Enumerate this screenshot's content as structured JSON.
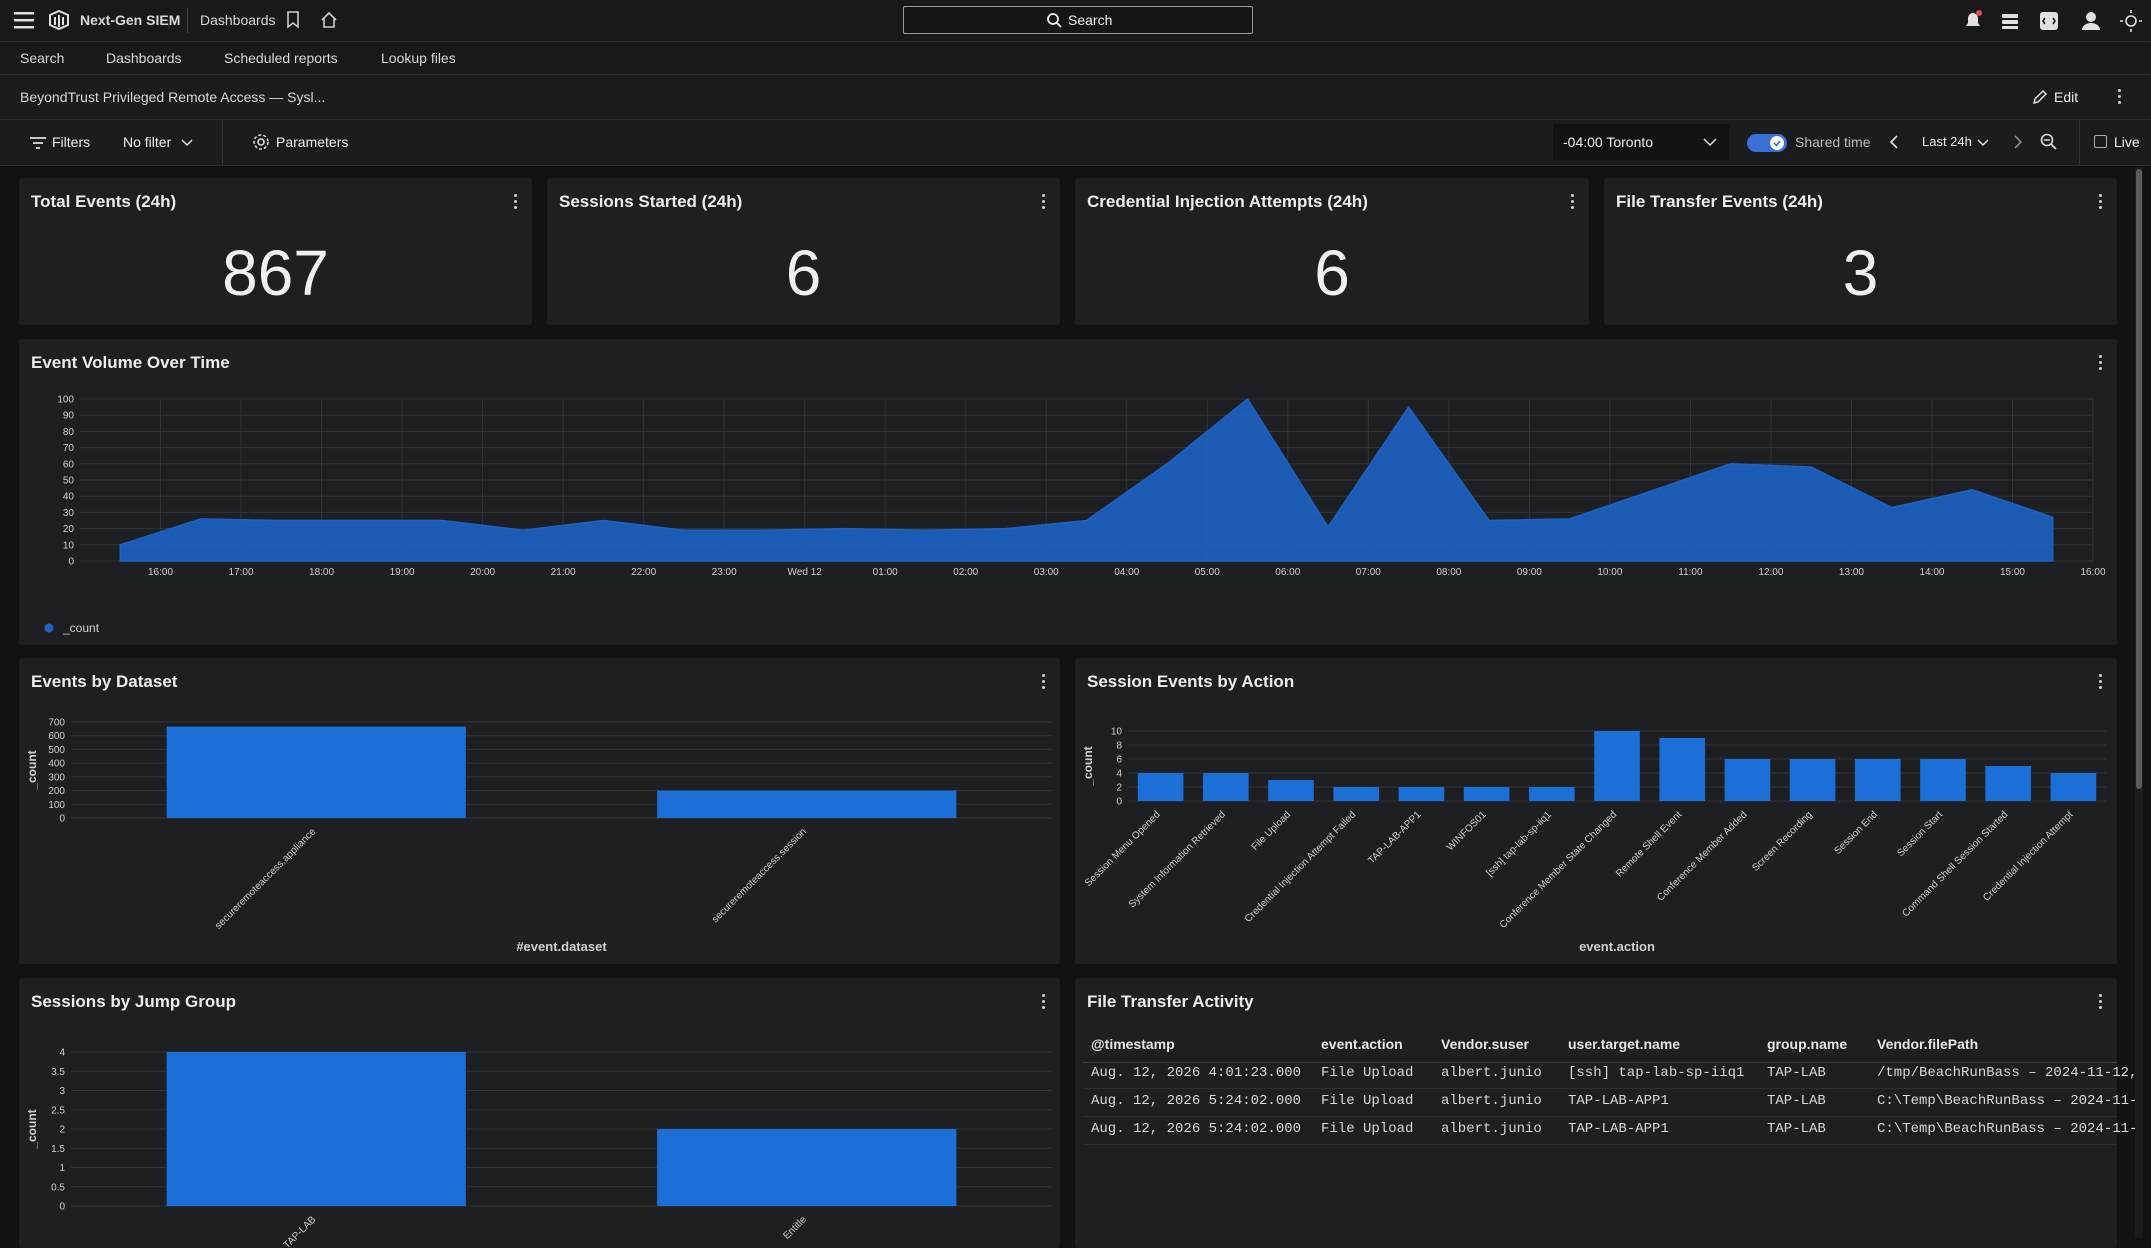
{
  "topbar": {
    "brand": "Next-Gen SIEM",
    "section": "Dashboards",
    "search": "Search"
  },
  "nav": {
    "items": [
      "Search",
      "Dashboards",
      "Scheduled reports",
      "Lookup files"
    ]
  },
  "dashboard": {
    "title": "BeyondTrust Privileged Remote Access — Sysl...",
    "edit": "Edit"
  },
  "toolbar": {
    "filters": "Filters",
    "filter_value": "No filter",
    "parameters": "Parameters",
    "timezone": "-04:00 Toronto",
    "shared_time": "Shared time",
    "range": "Last 24h",
    "live": "Live"
  },
  "stats": [
    {
      "title": "Total Events (24h)",
      "value": 867
    },
    {
      "title": "Sessions Started (24h)",
      "value": 6
    },
    {
      "title": "Credential Injection Attempts (24h)",
      "value": 6
    },
    {
      "title": "File Transfer Events (24h)",
      "value": 3
    }
  ],
  "chart_data": [
    {
      "type": "area",
      "title": "Event Volume Over Time",
      "x": [
        15.5,
        16.5,
        17.5,
        18.5,
        19.5,
        20.5,
        21.5,
        22.5,
        23.5,
        24.5,
        25.5,
        26.5,
        27.5,
        28.5,
        29.5,
        30.5,
        31.5,
        32.5,
        33.5,
        34.5,
        35.5,
        36.5,
        37.5,
        38.5,
        39.5
      ],
      "series": [
        {
          "name": "_count",
          "color": "#1c62c4",
          "values": [
            10,
            26,
            25,
            25,
            25,
            19,
            25,
            19,
            19,
            20,
            19,
            20,
            25,
            60,
            100,
            21,
            95,
            25,
            26,
            43,
            60,
            58,
            33,
            44,
            27
          ]
        }
      ],
      "xlim": [
        15,
        40
      ],
      "xticks": [
        {
          "value": 16,
          "label": "16:00"
        },
        {
          "value": 17,
          "label": "17:00"
        },
        {
          "value": 18,
          "label": "18:00"
        },
        {
          "value": 19,
          "label": "19:00"
        },
        {
          "value": 20,
          "label": "20:00"
        },
        {
          "value": 21,
          "label": "21:00"
        },
        {
          "value": 22,
          "label": "22:00"
        },
        {
          "value": 23,
          "label": "23:00"
        },
        {
          "value": 24,
          "label": "Wed 12"
        },
        {
          "value": 25,
          "label": "01:00"
        },
        {
          "value": 26,
          "label": "02:00"
        },
        {
          "value": 27,
          "label": "03:00"
        },
        {
          "value": 28,
          "label": "04:00"
        },
        {
          "value": 29,
          "label": "05:00"
        },
        {
          "value": 30,
          "label": "06:00"
        },
        {
          "value": 31,
          "label": "07:00"
        },
        {
          "value": 32,
          "label": "08:00"
        },
        {
          "value": 33,
          "label": "09:00"
        },
        {
          "value": 34,
          "label": "10:00"
        },
        {
          "value": 35,
          "label": "11:00"
        },
        {
          "value": 36,
          "label": "12:00"
        },
        {
          "value": 37,
          "label": "13:00"
        },
        {
          "value": 38,
          "label": "14:00"
        },
        {
          "value": 39,
          "label": "15:00"
        },
        {
          "value": 40,
          "label": "16:00"
        }
      ],
      "ylim": [
        0,
        100
      ],
      "yticks": [
        0,
        10,
        20,
        30,
        40,
        50,
        60,
        70,
        80,
        90,
        100
      ],
      "grid": true
    },
    {
      "type": "bar",
      "title": "Events by Dataset",
      "x_label": "#event.dataset",
      "y_label": "_count",
      "categories": [
        "secureremoteaccess.appliance",
        "secureremoteaccess.session"
      ],
      "values": [
        667,
        200
      ],
      "color": "#1c6fd6",
      "ylim": [
        0,
        700
      ],
      "yticks": [
        0,
        100,
        200,
        300,
        400,
        500,
        600,
        700
      ],
      "grid": true
    },
    {
      "type": "bar",
      "title": "Session Events by Action",
      "x_label": "event.action",
      "y_label": "_count",
      "categories": [
        "Session Menu Opened",
        "System Information Retrieved",
        "File Upload",
        "Credential Injection Attempt Failed",
        "TAP-LAB-APP1",
        "WINFOS01",
        "[ssh] tap-lab-sp-iiq1",
        "Conference Member State Changed",
        "Remote Shell Event",
        "Conference Member Added",
        "Screen Recording",
        "Session End",
        "Session Start",
        "Command Shell Session Started",
        "Credential Injection Attempt"
      ],
      "values": [
        4,
        4,
        3,
        2,
        2,
        2,
        2,
        10,
        9,
        6,
        6,
        6,
        6,
        5,
        4
      ],
      "color": "#1c6fd6",
      "ylim": [
        0,
        10
      ],
      "yticks": [
        0,
        2,
        4,
        6,
        8,
        10
      ],
      "grid": true
    },
    {
      "type": "bar",
      "title": "Sessions by Jump Group",
      "y_label": "_count",
      "categories": [
        "TAP-LAB",
        "Entitle"
      ],
      "values": [
        4,
        2
      ],
      "color": "#1c6fd6",
      "ylim": [
        0,
        4
      ],
      "yticks": [
        0,
        0.5,
        1,
        1.5,
        2,
        2.5,
        3,
        3.5,
        4
      ],
      "grid": true
    }
  ],
  "table": {
    "title": "File Transfer Activity",
    "columns": [
      "@timestamp",
      "event.action",
      "Vendor.suser",
      "user.target.name",
      "group.name",
      "Vendor.filePath"
    ],
    "rows": [
      [
        "Aug. 12, 2026 4:01:23.000",
        "File Upload",
        "albert.junio",
        "[ssh] tap-lab-sp-iiq1",
        "TAP-LAB",
        "/tmp/BeachRunBass – 2024-11-12,"
      ],
      [
        "Aug. 12, 2026 5:24:02.000",
        "File Upload",
        "albert.junio",
        "TAP-LAB-APP1",
        "TAP-LAB",
        "C:\\Temp\\BeachRunBass – 2024-11-"
      ],
      [
        "Aug. 12, 2026 5:24:02.000",
        "File Upload",
        "albert.junio",
        "TAP-LAB-APP1",
        "TAP-LAB",
        "C:\\Temp\\BeachRunBass – 2024-11-"
      ]
    ]
  }
}
